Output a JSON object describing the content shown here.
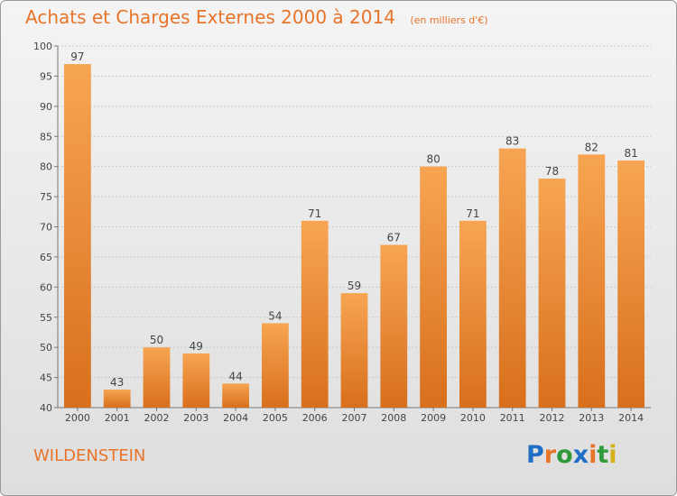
{
  "chart_data": {
    "type": "bar",
    "title": "Achats et Charges Externes 2000 à 2014",
    "subtitle": "(en milliers d'€)",
    "categories": [
      "2000",
      "2001",
      "2002",
      "2003",
      "2004",
      "2005",
      "2006",
      "2007",
      "2008",
      "2009",
      "2010",
      "2011",
      "2012",
      "2013",
      "2014"
    ],
    "values": [
      97,
      43,
      50,
      49,
      44,
      54,
      71,
      59,
      67,
      80,
      71,
      83,
      78,
      82,
      81
    ],
    "ylim": [
      40,
      100
    ],
    "yticks": [
      40,
      45,
      50,
      55,
      60,
      65,
      70,
      75,
      80,
      85,
      90,
      95,
      100
    ],
    "grid": true,
    "bar_color": "#f08c35"
  },
  "place_name": "WILDENSTEIN",
  "logo": {
    "text": "Proxiti",
    "letters": [
      {
        "ch": "P",
        "color": "#1f6fc4"
      },
      {
        "ch": "r",
        "color": "#e8742a"
      },
      {
        "ch": "o",
        "color": "#2e9a3a"
      },
      {
        "ch": "x",
        "color": "#1f6fc4"
      },
      {
        "ch": "i",
        "color": "#e8742a"
      },
      {
        "ch": "t",
        "color": "#2e9a3a"
      },
      {
        "ch": "i",
        "color": "#d6b21a"
      }
    ]
  }
}
